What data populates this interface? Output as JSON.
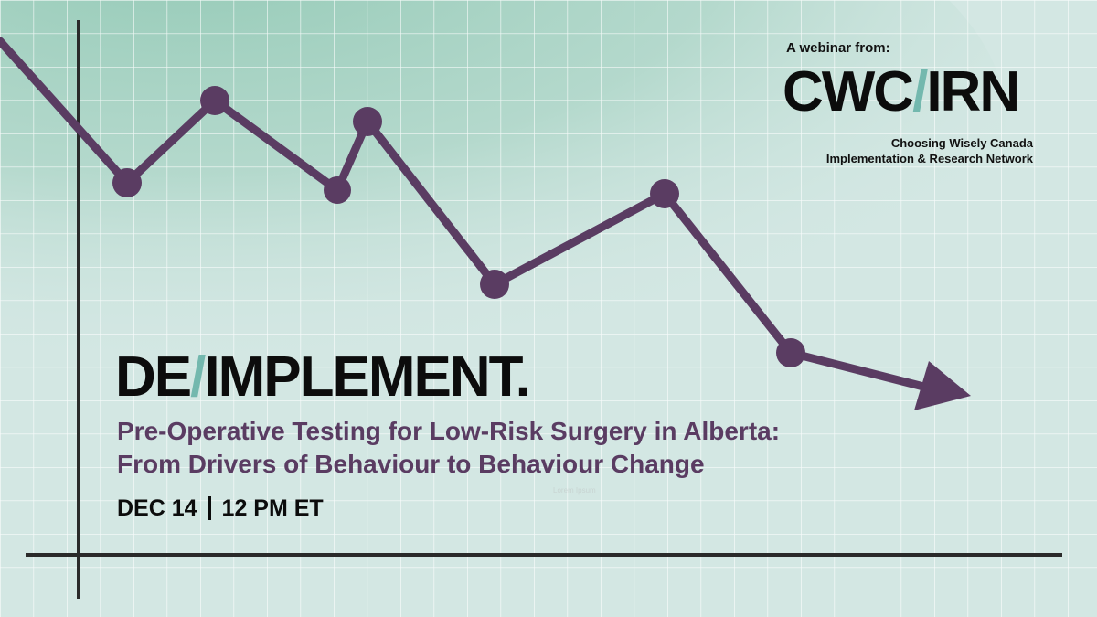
{
  "header": {
    "webinar_label": "A webinar from:",
    "logo_left": "CWC",
    "logo_slash": "/",
    "logo_right": "IRN",
    "org_line1": "Choosing Wisely Canada",
    "org_line2": "Implementation & Research Network"
  },
  "event": {
    "title_left": "DE",
    "title_slash": "/",
    "title_right": "IMPLEMENT.",
    "subtitle_line1": "Pre-Operative Testing for Low-Risk Surgery in Alberta:",
    "subtitle_line2": "From Drivers of Behaviour to Behaviour Change",
    "date": "DEC 14",
    "time": "12 PM ET",
    "watermark": "Lorem Ipsum"
  },
  "colors": {
    "background": "#d3e7e3",
    "green_wash": "#8ec7b2",
    "grid": "#ffffff",
    "line": "#5a3c62",
    "axis": "#2a2a2a",
    "accent_slash": "#73b8ae",
    "subtitle": "#5a3c62"
  }
}
